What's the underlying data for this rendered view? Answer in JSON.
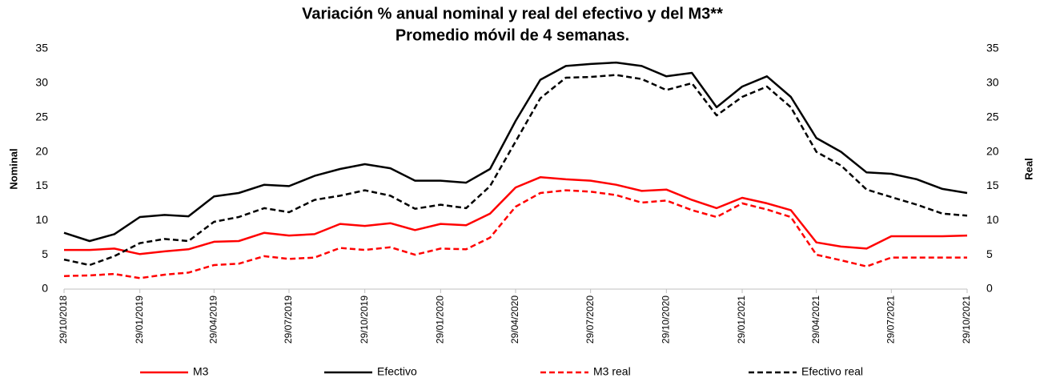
{
  "chart_data": {
    "type": "line",
    "title": "Variación % anual nominal y real del efectivo y del M3**",
    "subtitle": "Promedio móvil de 4 semanas.",
    "ylabel": "Nominal",
    "y2label": "Real",
    "x": [
      "29/10/2018",
      "29/11/2018",
      "29/12/2018",
      "29/01/2019",
      "28/02/2019",
      "29/03/2019",
      "29/04/2019",
      "29/05/2019",
      "29/06/2019",
      "29/07/2019",
      "29/08/2019",
      "29/09/2019",
      "29/10/2019",
      "29/11/2019",
      "29/12/2019",
      "29/01/2020",
      "29/02/2020",
      "29/03/2020",
      "29/04/2020",
      "29/05/2020",
      "29/06/2020",
      "29/07/2020",
      "29/08/2020",
      "29/09/2020",
      "29/10/2020",
      "29/11/2020",
      "29/12/2020",
      "29/01/2021",
      "28/02/2021",
      "29/03/2021",
      "29/04/2021",
      "29/05/2021",
      "29/06/2021",
      "29/07/2021",
      "29/08/2021",
      "29/09/2021",
      "29/10/2021"
    ],
    "xlim": [
      "29/10/2018",
      "29/10/2021"
    ],
    "xticks": [
      "29/10/2018",
      "29/01/2019",
      "29/04/2019",
      "29/07/2019",
      "29/10/2019",
      "29/01/2020",
      "29/04/2020",
      "29/07/2020",
      "29/10/2020",
      "29/01/2021",
      "29/04/2021",
      "29/07/2021",
      "29/10/2021"
    ],
    "ylim": [
      0,
      35
    ],
    "yticks": [
      0,
      5,
      10,
      15,
      20,
      25,
      30,
      35
    ],
    "y2lim": [
      0,
      35
    ],
    "y2ticks": [
      0,
      5,
      10,
      15,
      20,
      25,
      30,
      35
    ],
    "series": [
      {
        "name": "M3",
        "color": "#ff0000",
        "style": "solid",
        "values": [
          5.7,
          5.7,
          5.9,
          5.1,
          5.5,
          5.8,
          6.9,
          7.0,
          8.2,
          7.8,
          8.0,
          9.5,
          9.2,
          9.6,
          8.6,
          9.5,
          9.3,
          11.0,
          14.8,
          16.3,
          16.0,
          15.8,
          15.2,
          14.3,
          14.5,
          13.0,
          11.8,
          13.3,
          12.5,
          11.5,
          6.8,
          6.2,
          5.9,
          7.7,
          7.7,
          7.7,
          7.8
        ]
      },
      {
        "name": "Efectivo",
        "color": "#000000",
        "style": "solid",
        "values": [
          8.2,
          7.0,
          8.0,
          10.5,
          10.8,
          10.6,
          13.5,
          14.0,
          15.2,
          15.0,
          16.5,
          17.5,
          18.2,
          17.6,
          15.8,
          15.8,
          15.5,
          17.5,
          24.5,
          30.5,
          32.5,
          32.8,
          33.0,
          32.5,
          31.0,
          31.5,
          26.5,
          29.5,
          31.0,
          28.0,
          22.0,
          20.0,
          17.0,
          16.8,
          16.0,
          14.6,
          14.0
        ]
      },
      {
        "name": "M3 real",
        "color": "#ff0000",
        "style": "dashed",
        "axis": "y2",
        "values": [
          1.9,
          2.0,
          2.2,
          1.6,
          2.1,
          2.4,
          3.5,
          3.7,
          4.8,
          4.4,
          4.6,
          6.0,
          5.7,
          6.1,
          5.0,
          5.9,
          5.8,
          7.5,
          12.0,
          14.0,
          14.4,
          14.2,
          13.7,
          12.6,
          12.9,
          11.5,
          10.5,
          12.5,
          11.6,
          10.5,
          5.0,
          4.2,
          3.3,
          4.6,
          4.6,
          4.6,
          4.6
        ]
      },
      {
        "name": "Efectivo real",
        "color": "#000000",
        "style": "dashed",
        "axis": "y2",
        "values": [
          4.3,
          3.5,
          4.8,
          6.7,
          7.3,
          7.0,
          9.8,
          10.5,
          11.8,
          11.2,
          13.0,
          13.6,
          14.4,
          13.6,
          11.7,
          12.3,
          11.8,
          15.0,
          21.5,
          27.8,
          30.8,
          30.9,
          31.2,
          30.6,
          29.0,
          30.0,
          25.3,
          28.0,
          29.5,
          26.5,
          20.0,
          18.0,
          14.5,
          13.4,
          12.3,
          11.0,
          10.7
        ]
      }
    ]
  }
}
